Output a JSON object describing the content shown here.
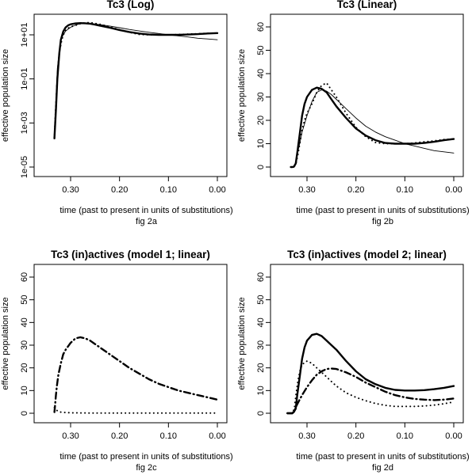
{
  "chart_data": [
    {
      "type": "line",
      "title": "Tc3 (Log)",
      "xlabel": "time (past to present in units of substitutions)",
      "ylabel": "effective population size",
      "caption": "fig 2a",
      "y_scale": "log10",
      "xlim": [
        0.34,
        0.0
      ],
      "ylim": [
        1e-05,
        30
      ],
      "xticks": [
        0.3,
        0.2,
        0.1,
        0.0
      ],
      "xtick_labels": [
        "0.30",
        "0.20",
        "0.10",
        "0.00"
      ],
      "yticks": [
        1e-05,
        0.001,
        0.1,
        10
      ],
      "ytick_labels": [
        "1e-05",
        "1e-03",
        "1e-01",
        "1e+01"
      ],
      "grid": false,
      "series": [
        {
          "style": "solid-thick",
          "x": [
            0.333,
            0.33,
            0.327,
            0.323,
            0.32,
            0.315,
            0.31,
            0.305,
            0.3,
            0.29,
            0.28,
            0.27,
            0.26,
            0.25,
            0.24,
            0.22,
            0.2,
            0.18,
            0.16,
            0.14,
            0.12,
            0.1,
            0.08,
            0.06,
            0.04,
            0.02,
            0.0
          ],
          "y": [
            0.0002,
            0.004,
            0.1,
            1.5,
            6,
            14,
            22,
            27,
            30,
            33,
            34,
            33.5,
            32,
            29,
            26,
            21,
            16.5,
            13.5,
            11.5,
            10.3,
            10,
            10,
            10,
            10.3,
            10.8,
            11.5,
            12
          ]
        },
        {
          "style": "solid-thin",
          "x": [
            0.333,
            0.33,
            0.327,
            0.323,
            0.32,
            0.315,
            0.31,
            0.3,
            0.29,
            0.28,
            0.27,
            0.26,
            0.25,
            0.24,
            0.22,
            0.2,
            0.18,
            0.16,
            0.14,
            0.12,
            0.1,
            0.08,
            0.06,
            0.04,
            0.02,
            0.0
          ],
          "y": [
            0.0002,
            0.01,
            0.3,
            2,
            5.5,
            10,
            15,
            22,
            28,
            32,
            33,
            32.5,
            31,
            29,
            25,
            21,
            17.5,
            15,
            13,
            11.5,
            10,
            9,
            8,
            7,
            6.5,
            6
          ]
        },
        {
          "style": "dotted",
          "x": [
            0.333,
            0.331,
            0.328,
            0.325,
            0.322,
            0.318,
            0.314,
            0.31,
            0.305,
            0.3,
            0.29,
            0.28,
            0.27,
            0.26,
            0.25,
            0.24,
            0.22,
            0.2,
            0.18,
            0.16,
            0.14,
            0.12,
            0.1,
            0.08,
            0.06,
            0.04,
            0.02,
            0.0
          ],
          "y": [
            0.0002,
            0.003,
            0.05,
            0.5,
            2,
            6,
            11,
            16,
            20,
            23,
            27,
            32,
            35,
            36,
            33,
            30,
            23,
            17,
            13,
            10.5,
            10,
            10,
            10,
            10.3,
            10.8,
            11.2,
            11.8,
            12
          ]
        }
      ]
    },
    {
      "type": "line",
      "title": "Tc3 (Linear)",
      "xlabel": "time (past to present in units of substitutions)",
      "ylabel": "effective population size",
      "caption": "fig 2b",
      "xlim": [
        0.34,
        0.0
      ],
      "ylim": [
        -2,
        62
      ],
      "xticks": [
        0.3,
        0.2,
        0.1,
        0.0
      ],
      "xtick_labels": [
        "0.30",
        "0.20",
        "0.10",
        "0.00"
      ],
      "yticks": [
        0,
        10,
        20,
        30,
        40,
        50,
        60
      ],
      "ytick_labels": [
        "0",
        "10",
        "20",
        "30",
        "40",
        "50",
        "60"
      ],
      "grid": false,
      "series": [
        {
          "style": "solid-thick",
          "x": [
            0.333,
            0.33,
            0.327,
            0.323,
            0.32,
            0.315,
            0.31,
            0.305,
            0.3,
            0.29,
            0.28,
            0.27,
            0.26,
            0.25,
            0.24,
            0.22,
            0.2,
            0.18,
            0.16,
            0.14,
            0.12,
            0.1,
            0.08,
            0.06,
            0.04,
            0.02,
            0.0
          ],
          "y": [
            0.0002,
            0.004,
            0.1,
            1.5,
            6,
            14,
            22,
            27,
            30,
            33,
            34,
            33.5,
            32,
            29,
            26,
            21,
            16.5,
            13.5,
            11.5,
            10.3,
            10,
            10,
            10,
            10.3,
            10.8,
            11.5,
            12
          ]
        },
        {
          "style": "solid-thin",
          "x": [
            0.333,
            0.33,
            0.327,
            0.323,
            0.32,
            0.315,
            0.31,
            0.3,
            0.29,
            0.28,
            0.27,
            0.26,
            0.25,
            0.24,
            0.22,
            0.2,
            0.18,
            0.16,
            0.14,
            0.12,
            0.1,
            0.08,
            0.06,
            0.04,
            0.02,
            0.0
          ],
          "y": [
            0.0002,
            0.01,
            0.3,
            2,
            5.5,
            10,
            15,
            22,
            28,
            32,
            33,
            32.5,
            31,
            29,
            25,
            21,
            17.5,
            15,
            13,
            11.5,
            10,
            9,
            8,
            7,
            6.5,
            6
          ]
        },
        {
          "style": "dotted",
          "x": [
            0.333,
            0.331,
            0.328,
            0.325,
            0.322,
            0.318,
            0.314,
            0.31,
            0.305,
            0.3,
            0.29,
            0.28,
            0.27,
            0.26,
            0.25,
            0.24,
            0.22,
            0.2,
            0.18,
            0.16,
            0.14,
            0.12,
            0.1,
            0.08,
            0.06,
            0.04,
            0.02,
            0.0
          ],
          "y": [
            0.0002,
            0.003,
            0.05,
            0.5,
            2,
            6,
            11,
            16,
            20,
            23,
            27,
            32,
            35,
            36,
            33,
            30,
            23,
            17,
            13,
            10.5,
            10,
            10,
            10,
            10.3,
            10.8,
            11.2,
            11.8,
            12
          ]
        }
      ]
    },
    {
      "type": "line",
      "title": "Tc3 (in)actives (model 1; linear)",
      "xlabel": "time (past to present in units of substitutions)",
      "ylabel": "effective population size",
      "caption": "fig 2c",
      "xlim": [
        0.34,
        0.0
      ],
      "ylim": [
        -2,
        62
      ],
      "xticks": [
        0.3,
        0.2,
        0.1,
        0.0
      ],
      "xtick_labels": [
        "0.30",
        "0.20",
        "0.10",
        "0.00"
      ],
      "yticks": [
        0,
        10,
        20,
        30,
        40,
        50,
        60
      ],
      "ytick_labels": [
        "0",
        "10",
        "20",
        "30",
        "40",
        "50",
        "60"
      ],
      "grid": false,
      "series": [
        {
          "style": "dashdot-thick",
          "x": [
            0.333,
            0.332,
            0.33,
            0.328,
            0.325,
            0.32,
            0.315,
            0.31,
            0.3,
            0.29,
            0.28,
            0.27,
            0.26,
            0.25,
            0.24,
            0.22,
            0.2,
            0.18,
            0.16,
            0.14,
            0.12,
            0.1,
            0.08,
            0.06,
            0.04,
            0.02,
            0.0
          ],
          "y": [
            0.5,
            3,
            8,
            12,
            17,
            22,
            26,
            28,
            31,
            33,
            33.5,
            33,
            32,
            30.5,
            29,
            26,
            23,
            20,
            17.5,
            15,
            13,
            11.5,
            10,
            9,
            8,
            7,
            6
          ]
        },
        {
          "style": "dotted",
          "x": [
            0.333,
            0.33,
            0.325,
            0.32,
            0.31,
            0.3,
            0.28,
            0.26,
            0.24,
            0.22,
            0.2,
            0.18,
            0.16,
            0.14,
            0.12,
            0.1,
            0.08,
            0.06,
            0.04,
            0.02,
            0.0
          ],
          "y": [
            2.5,
            1.5,
            0.8,
            0.5,
            0.3,
            0.2,
            0.15,
            0.1,
            0.1,
            0.1,
            0.1,
            0.1,
            0.1,
            0.1,
            0.1,
            0.1,
            0.1,
            0.1,
            0.1,
            0.1,
            0.1
          ]
        }
      ]
    },
    {
      "type": "line",
      "title": "Tc3 (in)actives (model 2; linear)",
      "xlabel": "time (past to present in units of substitutions)",
      "ylabel": "effective population size",
      "caption": "fig 2d",
      "xlim": [
        0.34,
        0.0
      ],
      "ylim": [
        -2,
        62
      ],
      "xticks": [
        0.3,
        0.2,
        0.1,
        0.0
      ],
      "xtick_labels": [
        "0.30",
        "0.20",
        "0.10",
        "0.00"
      ],
      "yticks": [
        0,
        10,
        20,
        30,
        40,
        50,
        60
      ],
      "ytick_labels": [
        "0",
        "10",
        "20",
        "30",
        "40",
        "50",
        "60"
      ],
      "grid": false,
      "series": [
        {
          "style": "solid-thick",
          "x": [
            0.34,
            0.33,
            0.327,
            0.323,
            0.32,
            0.315,
            0.31,
            0.305,
            0.3,
            0.29,
            0.28,
            0.27,
            0.26,
            0.25,
            0.24,
            0.22,
            0.2,
            0.18,
            0.16,
            0.14,
            0.12,
            0.1,
            0.08,
            0.06,
            0.04,
            0.02,
            0.0
          ],
          "y": [
            0,
            0,
            0.5,
            2,
            8,
            16,
            24,
            29,
            32,
            34.5,
            35,
            34,
            32,
            30,
            28,
            23,
            18.5,
            15,
            12.8,
            11.2,
            10.3,
            10,
            10,
            10.2,
            10.6,
            11.2,
            12
          ]
        },
        {
          "style": "dashdot-thick",
          "x": [
            0.34,
            0.33,
            0.326,
            0.32,
            0.31,
            0.3,
            0.29,
            0.28,
            0.27,
            0.26,
            0.25,
            0.24,
            0.22,
            0.2,
            0.18,
            0.16,
            0.14,
            0.12,
            0.1,
            0.08,
            0.06,
            0.04,
            0.02,
            0.0
          ],
          "y": [
            0,
            0,
            1,
            4,
            8,
            11.5,
            14.5,
            17,
            18.5,
            19.5,
            19.7,
            19.5,
            18,
            16,
            13.5,
            11.5,
            9.5,
            8,
            7,
            6.3,
            6,
            5.8,
            6,
            6.5
          ]
        },
        {
          "style": "dotted",
          "x": [
            0.34,
            0.33,
            0.326,
            0.322,
            0.318,
            0.314,
            0.31,
            0.3,
            0.29,
            0.28,
            0.27,
            0.26,
            0.25,
            0.24,
            0.22,
            0.2,
            0.18,
            0.16,
            0.14,
            0.12,
            0.1,
            0.08,
            0.06,
            0.04,
            0.02,
            0.0
          ],
          "y": [
            0,
            0,
            2,
            9,
            15,
            19,
            21.5,
            23,
            22,
            20,
            18,
            16,
            14,
            12,
            9,
            7,
            5.5,
            4.3,
            3.5,
            3,
            3,
            3,
            3.2,
            3.6,
            4.2,
            5
          ]
        }
      ]
    }
  ]
}
